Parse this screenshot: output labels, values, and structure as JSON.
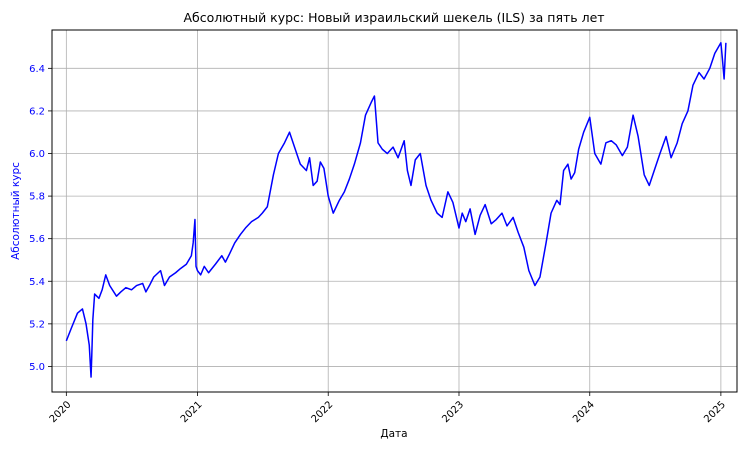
{
  "chart_data": {
    "type": "line",
    "title": "Абсолютный курс: Новый израильский шекель (ILS) за пять лет",
    "xlabel": "Дата",
    "ylabel": "Абсолютный курс",
    "grid": true,
    "xlim": [
      "2019-11-22",
      "2025-02-15"
    ],
    "ylim": [
      4.88,
      6.58
    ],
    "x_ticks": [
      "2020",
      "2021",
      "2022",
      "2023",
      "2024",
      "2025"
    ],
    "y_ticks": [
      "5.0",
      "5.2",
      "5.4",
      "5.6",
      "5.8",
      "6.0",
      "6.2",
      "6.4"
    ],
    "colors": {
      "line": "#0000ff",
      "ylabel": "#0000ff",
      "yticks": "#0000ff"
    },
    "series": [
      {
        "x": [
          "2020-01-01",
          "2020-01-15",
          "2020-02-01",
          "2020-02-15",
          "2020-02-25",
          "2020-03-05",
          "2020-03-10",
          "2020-03-12",
          "2020-03-15",
          "2020-03-20",
          "2020-04-01",
          "2020-04-10",
          "2020-04-20",
          "2020-05-01",
          "2020-05-20",
          "2020-06-01",
          "2020-06-15",
          "2020-07-01",
          "2020-07-15",
          "2020-08-01",
          "2020-08-10",
          "2020-08-20",
          "2020-09-01",
          "2020-09-20",
          "2020-10-01",
          "2020-10-15",
          "2020-11-01",
          "2020-11-15",
          "2020-12-01",
          "2020-12-15",
          "2020-12-20",
          "2020-12-25",
          "2020-12-28",
          "2021-01-01",
          "2021-01-10",
          "2021-01-20",
          "2021-02-01",
          "2021-02-20",
          "2021-03-10",
          "2021-03-20",
          "2021-04-01",
          "2021-04-15",
          "2021-05-01",
          "2021-05-15",
          "2021-06-01",
          "2021-06-20",
          "2021-07-01",
          "2021-07-15",
          "2021-08-01",
          "2021-08-15",
          "2021-09-01",
          "2021-09-15",
          "2021-10-01",
          "2021-10-15",
          "2021-11-01",
          "2021-11-10",
          "2021-11-20",
          "2021-12-01",
          "2021-12-10",
          "2021-12-20",
          "2022-01-01",
          "2022-01-15",
          "2022-02-01",
          "2022-02-15",
          "2022-03-01",
          "2022-03-15",
          "2022-04-01",
          "2022-04-15",
          "2022-05-01",
          "2022-05-10",
          "2022-05-20",
          "2022-06-01",
          "2022-06-15",
          "2022-07-01",
          "2022-07-15",
          "2022-08-01",
          "2022-08-10",
          "2022-08-20",
          "2022-09-01",
          "2022-09-15",
          "2022-10-01",
          "2022-10-15",
          "2022-11-01",
          "2022-11-15",
          "2022-12-01",
          "2022-12-15",
          "2023-01-01",
          "2023-01-10",
          "2023-01-20",
          "2023-02-01",
          "2023-02-15",
          "2023-03-01",
          "2023-03-15",
          "2023-04-01",
          "2023-04-15",
          "2023-05-01",
          "2023-05-15",
          "2023-06-01",
          "2023-06-15",
          "2023-07-01",
          "2023-07-15",
          "2023-08-01",
          "2023-08-15",
          "2023-09-01",
          "2023-09-15",
          "2023-10-01",
          "2023-10-10",
          "2023-10-20",
          "2023-11-01",
          "2023-11-10",
          "2023-11-20",
          "2023-12-01",
          "2023-12-15",
          "2024-01-01",
          "2024-01-15",
          "2024-02-01",
          "2024-02-15",
          "2024-03-01",
          "2024-03-15",
          "2024-04-01",
          "2024-04-15",
          "2024-05-01",
          "2024-05-15",
          "2024-06-01",
          "2024-06-15",
          "2024-07-01",
          "2024-07-15",
          "2024-08-01",
          "2024-08-15",
          "2024-09-01",
          "2024-09-15",
          "2024-10-01",
          "2024-10-15",
          "2024-11-01",
          "2024-11-15",
          "2024-12-01",
          "2024-12-15",
          "2025-01-01",
          "2025-01-05",
          "2025-01-10",
          "2025-01-15"
        ],
        "values": [
          5.12,
          5.18,
          5.25,
          5.27,
          5.2,
          5.1,
          4.95,
          5.05,
          5.22,
          5.34,
          5.32,
          5.36,
          5.43,
          5.38,
          5.33,
          5.35,
          5.37,
          5.36,
          5.38,
          5.39,
          5.35,
          5.38,
          5.42,
          5.45,
          5.38,
          5.42,
          5.44,
          5.46,
          5.48,
          5.52,
          5.58,
          5.69,
          5.47,
          5.45,
          5.43,
          5.47,
          5.44,
          5.48,
          5.52,
          5.49,
          5.53,
          5.58,
          5.62,
          5.65,
          5.68,
          5.7,
          5.72,
          5.75,
          5.9,
          6.0,
          6.05,
          6.1,
          6.02,
          5.95,
          5.92,
          5.98,
          5.85,
          5.87,
          5.96,
          5.93,
          5.8,
          5.72,
          5.78,
          5.82,
          5.88,
          5.95,
          6.05,
          6.18,
          6.24,
          6.27,
          6.05,
          6.02,
          6.0,
          6.03,
          5.98,
          6.06,
          5.92,
          5.85,
          5.97,
          6.0,
          5.85,
          5.78,
          5.72,
          5.7,
          5.82,
          5.77,
          5.65,
          5.72,
          5.68,
          5.74,
          5.62,
          5.71,
          5.76,
          5.67,
          5.69,
          5.72,
          5.66,
          5.7,
          5.63,
          5.56,
          5.45,
          5.38,
          5.42,
          5.58,
          5.72,
          5.78,
          5.76,
          5.92,
          5.95,
          5.88,
          5.91,
          6.02,
          6.1,
          6.17,
          6.0,
          5.95,
          6.05,
          6.06,
          6.04,
          5.99,
          6.03,
          6.18,
          6.08,
          5.9,
          5.85,
          5.93,
          6.0,
          6.08,
          5.98,
          6.05,
          6.14,
          6.2,
          6.32,
          6.38,
          6.35,
          6.4,
          6.47,
          6.52,
          6.45,
          6.35,
          6.52
        ]
      }
    ]
  }
}
